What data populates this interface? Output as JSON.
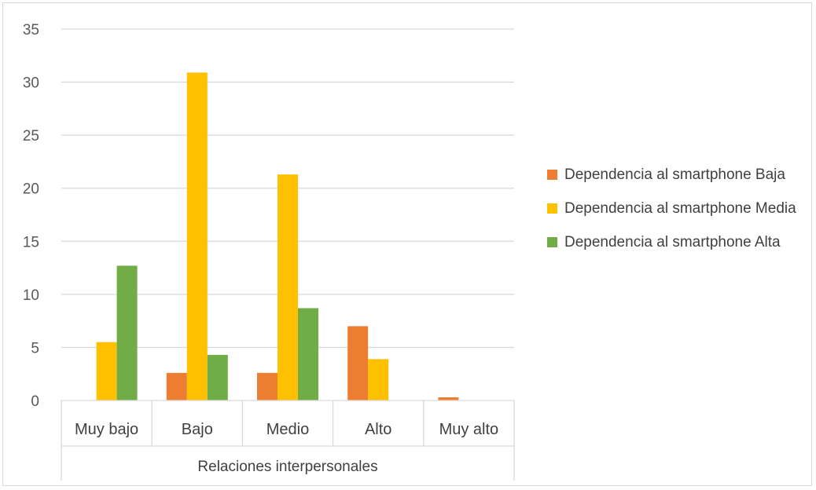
{
  "chart_data": {
    "type": "bar",
    "categories": [
      "Muy bajo",
      "Bajo",
      "Medio",
      "Alto",
      "Muy alto"
    ],
    "series": [
      {
        "name": "Dependencia al smartphone Baja",
        "color": "#ED7D31",
        "values": [
          0,
          2.6,
          2.6,
          7.0,
          0.3
        ]
      },
      {
        "name": "Dependencia al smartphone Media",
        "color": "#FFC000",
        "values": [
          5.5,
          30.9,
          21.3,
          3.9,
          0
        ]
      },
      {
        "name": "Dependencia al smartphone Alta",
        "color": "#70AD47",
        "values": [
          12.7,
          4.3,
          8.7,
          0,
          0
        ]
      }
    ],
    "title": "",
    "xlabel": "Relaciones interpersonales",
    "ylabel": "",
    "ylim": [
      0,
      35
    ],
    "yticks": [
      0,
      5,
      10,
      15,
      20,
      25,
      30,
      35
    ],
    "grid": true,
    "gridColor": "#d9d9d9",
    "legend_position": "right"
  }
}
